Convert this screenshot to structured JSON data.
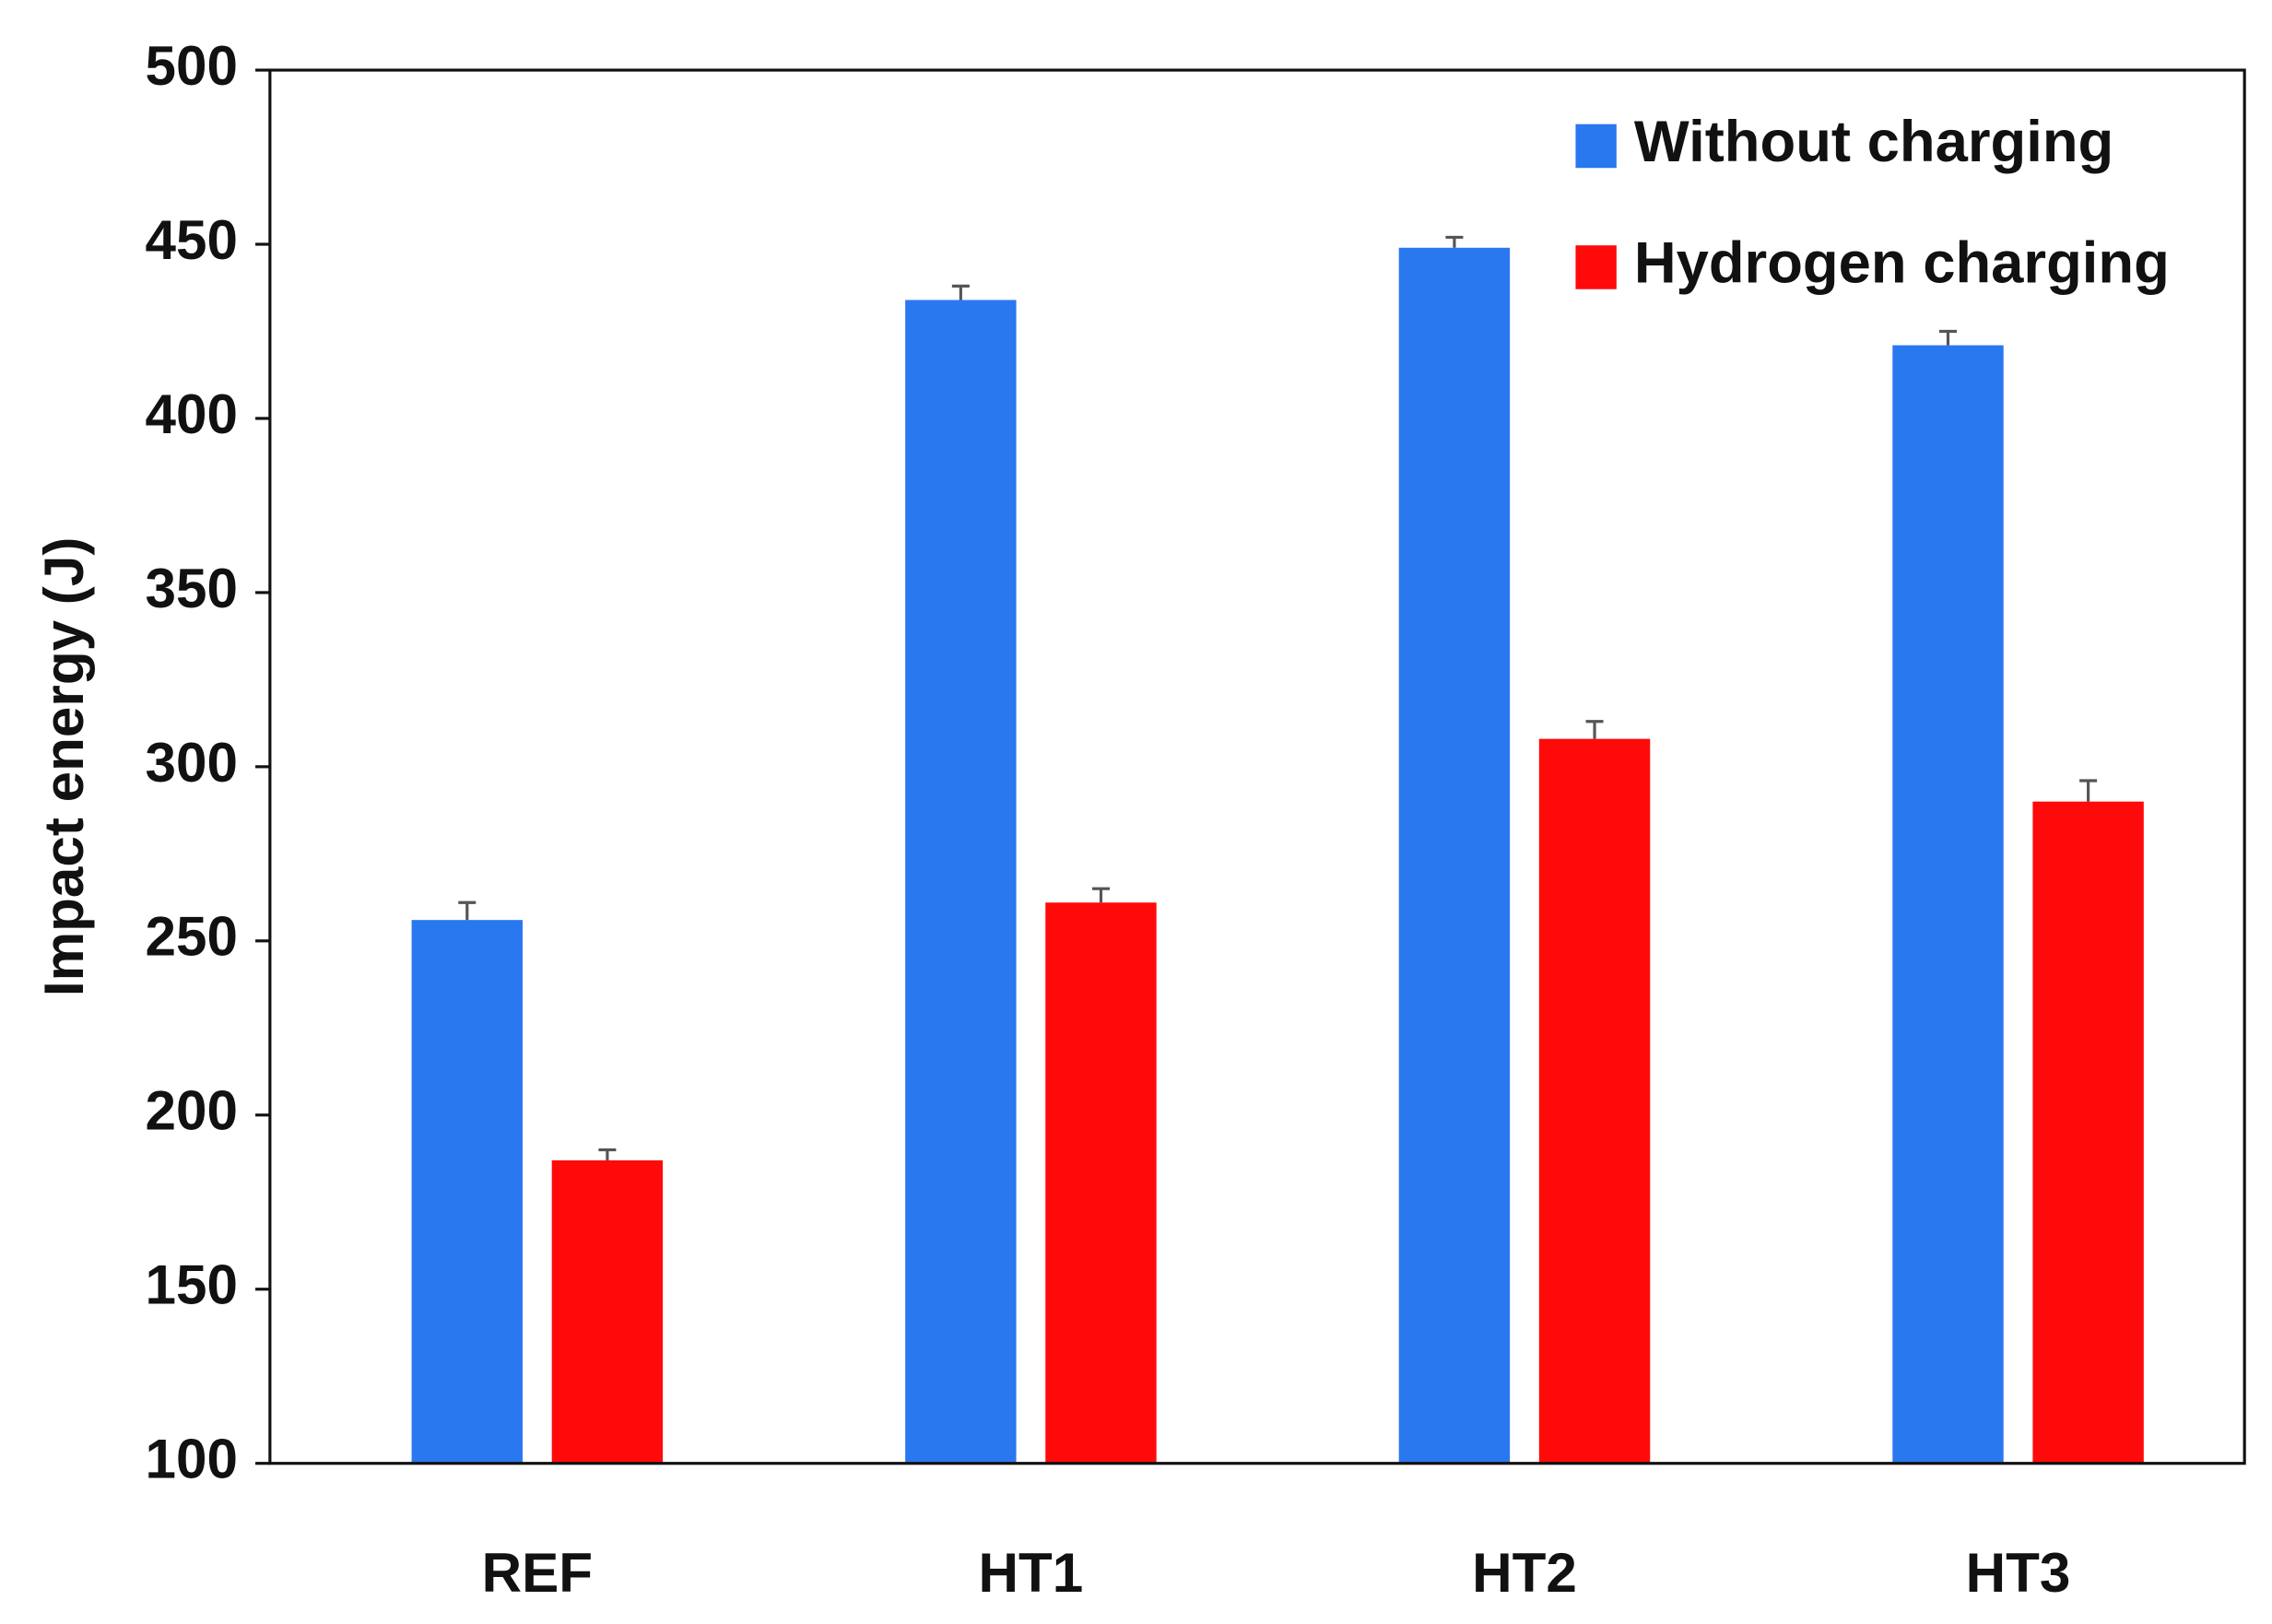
{
  "chart_data": {
    "type": "bar",
    "y_label": "Impact energy (J)",
    "categories": [
      "REF",
      "HT1",
      "HT2",
      "HT3"
    ],
    "series": [
      {
        "name": "Without charging",
        "color": "#2a78f0",
        "values": [
          256,
          434,
          449,
          421
        ],
        "errors": [
          5,
          4,
          3,
          4
        ]
      },
      {
        "name": "Hydrogen charging",
        "color": "#ff0a0a",
        "values": [
          187,
          261,
          308,
          290
        ],
        "errors": [
          3,
          4,
          5,
          6
        ]
      }
    ],
    "ylim": [
      100,
      500
    ],
    "yticks": [
      100,
      150,
      200,
      250,
      300,
      350,
      400,
      450,
      500
    ],
    "grid": false,
    "legend": "top-right"
  }
}
